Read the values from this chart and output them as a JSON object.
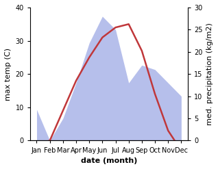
{
  "months": [
    "Jan",
    "Feb",
    "Mar",
    "Apr",
    "May",
    "Jun",
    "Jul",
    "Aug",
    "Sep",
    "Oct",
    "Nov",
    "Dec"
  ],
  "temperature": [
    -1,
    0,
    9,
    18,
    25,
    31,
    34,
    35,
    27,
    14,
    3,
    -3
  ],
  "precipitation": [
    7,
    0,
    5,
    13,
    22,
    28,
    25,
    13,
    17,
    16,
    13,
    10
  ],
  "temp_color": "#c0373a",
  "precip_color": "#aab4e8",
  "temp_ylim": [
    0,
    40
  ],
  "precip_ylim": [
    0,
    30
  ],
  "temp_ticks": [
    0,
    10,
    20,
    30,
    40
  ],
  "precip_ticks": [
    0,
    5,
    10,
    15,
    20,
    25,
    30
  ],
  "xlabel": "date (month)",
  "ylabel_left": "max temp (C)",
  "ylabel_right": "med. precipitation (kg/m2)",
  "label_fontsize": 8,
  "tick_fontsize": 7
}
